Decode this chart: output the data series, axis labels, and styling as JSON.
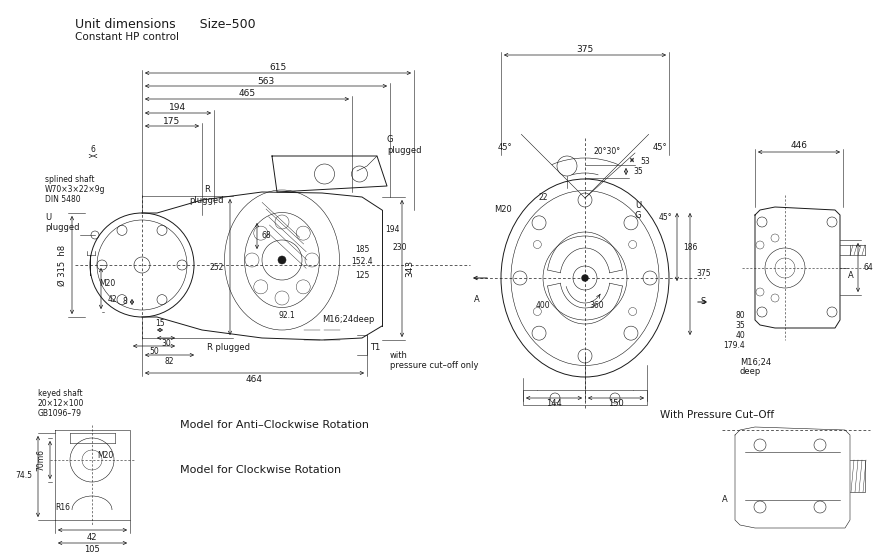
{
  "background_color": "#ffffff",
  "line_color": "#1a1a1a",
  "fig_width": 8.78,
  "fig_height": 5.58,
  "dpi": 100,
  "title": "Unit dimensions      Size–500",
  "subtitle": "Constant HP control",
  "model1": "Model for Anti–Clockwise Rotation",
  "model2": "Model for Clockwise Rotation",
  "with_pco": "With Pressure Cut–Off"
}
